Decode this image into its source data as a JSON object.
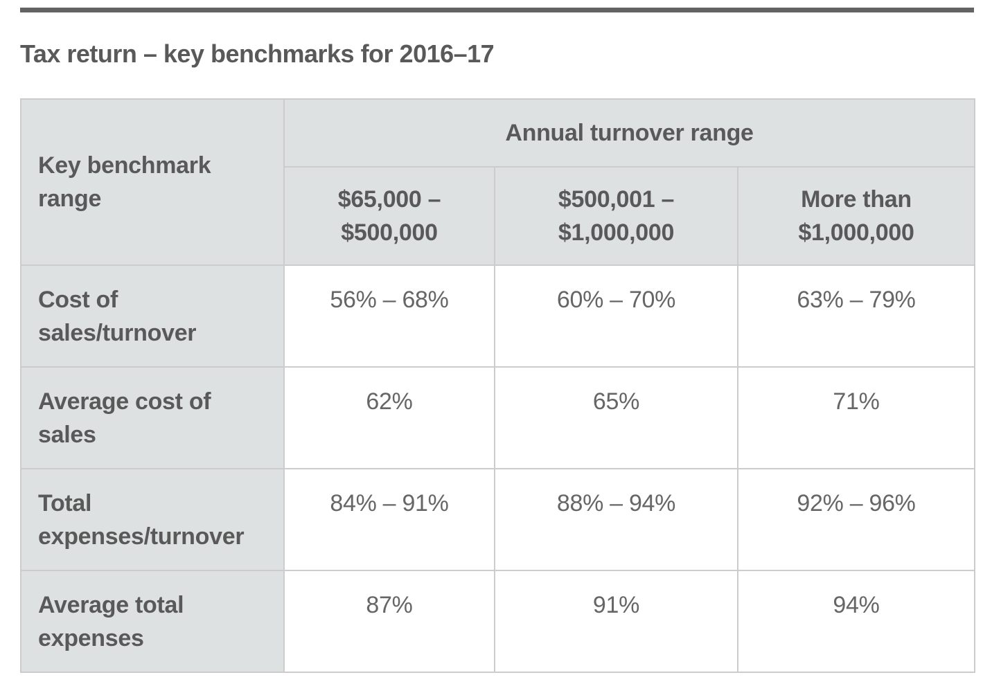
{
  "page": {
    "title": "Tax return – key benchmarks for 2016–17"
  },
  "table": {
    "corner_header": "Key benchmark\nrange",
    "group_header": "Annual turnover range",
    "column_headers": [
      "$65,000 –\n$500,000",
      "$500,001 –\n$1,000,000",
      "More than\n$1,000,000"
    ],
    "rows": [
      {
        "label": "Cost of\nsales/turnover",
        "values": [
          "56% – 68%",
          "60% – 70%",
          "63% – 79%"
        ]
      },
      {
        "label": "Average cost of\nsales",
        "values": [
          "62%",
          "65%",
          "71%"
        ]
      },
      {
        "label": "Total\nexpenses/turnover",
        "values": [
          "84% – 91%",
          "88% – 94%",
          "92% – 96%"
        ]
      },
      {
        "label": "Average total\nexpenses",
        "values": [
          "87%",
          "91%",
          "94%"
        ]
      }
    ]
  },
  "colors": {
    "top_bar": "#636363",
    "header_cell_bg": "#dee1e1",
    "cell_border": "#cccccc",
    "heading_text": "#595959",
    "value_text": "#666666"
  }
}
